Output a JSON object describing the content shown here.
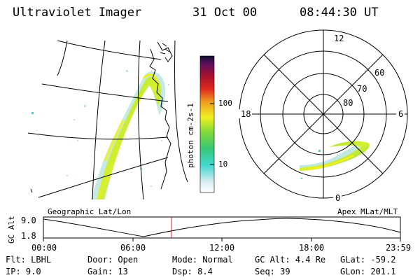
{
  "header": {
    "title": "Ultraviolet Imager",
    "date": "31 Oct 00",
    "time": "08:44:30 UT"
  },
  "colorbar": {
    "label": "photon cm-2s-1",
    "ticks": [
      "100",
      "10"
    ]
  },
  "polar_plot": {
    "mlt_labels": [
      "12",
      "18",
      "6",
      "0"
    ],
    "mlat_labels": [
      "60",
      "70",
      "80"
    ]
  },
  "map_labels": {
    "left": "Geographic Lat/Lon",
    "right": "Apex MLat/MLT"
  },
  "altitude_plot": {
    "ylabel": "GC Alt",
    "yticks": [
      "9.0",
      "1.8"
    ],
    "xticks": [
      "00:00",
      "06:00",
      "12:00",
      "18:00",
      "23:59"
    ],
    "cursor_time": "08:44:30"
  },
  "info": {
    "row1": [
      {
        "key": "Flt:",
        "value": "LBHL"
      },
      {
        "key": "Door:",
        "value": "Open"
      },
      {
        "key": "Mode:",
        "value": "Normal"
      },
      {
        "key": "GC Alt:",
        "value": "4.4 Re"
      },
      {
        "key": "GLat:",
        "value": "-59.2"
      }
    ],
    "row2": [
      {
        "key": "IP:",
        "value": "9.0"
      },
      {
        "key": "Gain:",
        "value": "13"
      },
      {
        "key": "Dsp:",
        "value": "8.4"
      },
      {
        "key": "Seq:",
        "value": "39"
      },
      {
        "key": "GLon:",
        "value": "201.1"
      }
    ]
  }
}
